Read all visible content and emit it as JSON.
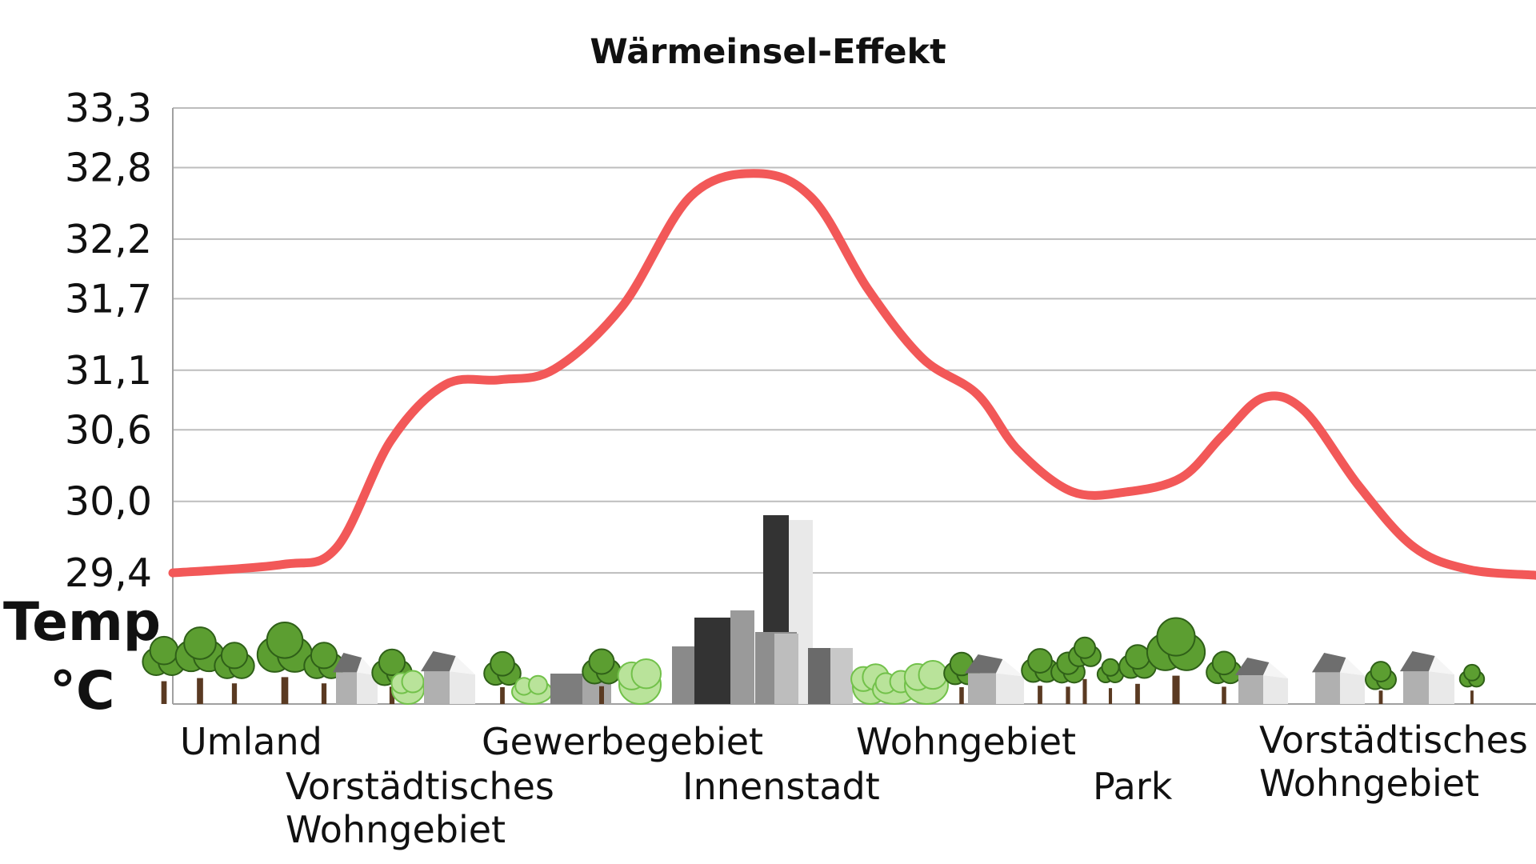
{
  "chart_data": {
    "type": "line",
    "title": "Wärmeinsel-Effekt",
    "ylabel_line1": "Temp",
    "ylabel_line2": "°C",
    "xlabel": "",
    "yticks": [
      "29,4",
      "30,0",
      "30,6",
      "31,1",
      "31,7",
      "32,2",
      "32,8",
      "33,3"
    ],
    "ylim": [
      28.3,
      33.3
    ],
    "grid": true,
    "legend": "none",
    "line_color": "#f25858",
    "grid_color": "#bdbdbd",
    "x_categories": [
      {
        "label": "Umland"
      },
      {
        "label": "Vorstädtisches Wohngebiet",
        "lines": [
          "Vorstädtisches",
          "Wohngebiet"
        ]
      },
      {
        "label": "Gewerbegebiet"
      },
      {
        "label": "Innenstadt"
      },
      {
        "label": "Wohngebiet"
      },
      {
        "label": "Park"
      },
      {
        "label": "Vorstädtisches Wohngebiet",
        "lines": [
          "Vorstädtisches",
          "Wohngebiet"
        ]
      }
    ],
    "series": [
      {
        "x": [
          0,
          0.08,
          0.12,
          0.16,
          0.2,
          0.24,
          0.28,
          0.33,
          0.38,
          0.43,
          0.47,
          0.51,
          0.55,
          0.59,
          0.62,
          0.66,
          0.7,
          0.74,
          0.77,
          0.8,
          0.83,
          0.87,
          0.91,
          0.95,
          1.0
        ],
        "y": [
          29.4,
          29.47,
          29.61,
          30.51,
          30.98,
          31.02,
          31.11,
          31.64,
          32.56,
          32.75,
          32.53,
          31.78,
          31.2,
          30.9,
          30.43,
          30.08,
          30.08,
          30.2,
          30.55,
          30.87,
          30.76,
          30.13,
          29.62,
          29.43,
          29.38
        ]
      }
    ]
  },
  "scene": {
    "tree_color": "#5c9e31",
    "tree_outline": "#2f6018",
    "trunk_color": "#5a3a22",
    "bush_color": "#b9e39a",
    "bush_outline": "#72c14a",
    "house_roof_color": "#6e6e6e",
    "house_wall_color": "#b0b0b0",
    "dark_building_color": "#333333",
    "light_building_color": "#e9e9e9"
  }
}
